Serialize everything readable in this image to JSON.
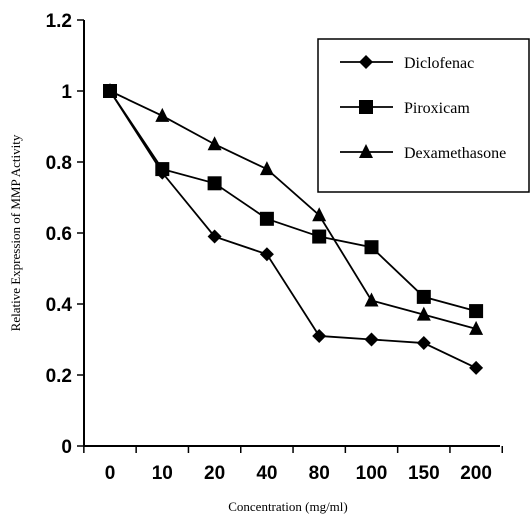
{
  "chart_data": {
    "type": "line",
    "title": "",
    "xlabel": "Concentration (mg/ml)",
    "ylabel": "Relative Expression of MMP Activity",
    "categories": [
      "0",
      "10",
      "20",
      "40",
      "80",
      "100",
      "150",
      "200"
    ],
    "ylim": [
      0,
      1.2
    ],
    "yticks": [
      "0",
      "0.2",
      "0.4",
      "0.6",
      "0.8",
      "1",
      "1.2"
    ],
    "grid": false,
    "legend_position": "top-right",
    "series": [
      {
        "name": "Diclofenac",
        "marker": "diamond",
        "color": "#000000",
        "values": [
          1.0,
          0.77,
          0.59,
          0.54,
          0.31,
          0.3,
          0.29,
          0.22
        ]
      },
      {
        "name": "Piroxicam",
        "marker": "square",
        "color": "#000000",
        "values": [
          1.0,
          0.78,
          0.74,
          0.64,
          0.59,
          0.56,
          0.42,
          0.38
        ]
      },
      {
        "name": "Dexamethasone",
        "marker": "triangle",
        "color": "#000000",
        "values": [
          1.0,
          0.93,
          0.85,
          0.78,
          0.65,
          0.41,
          0.37,
          0.33
        ]
      }
    ]
  }
}
